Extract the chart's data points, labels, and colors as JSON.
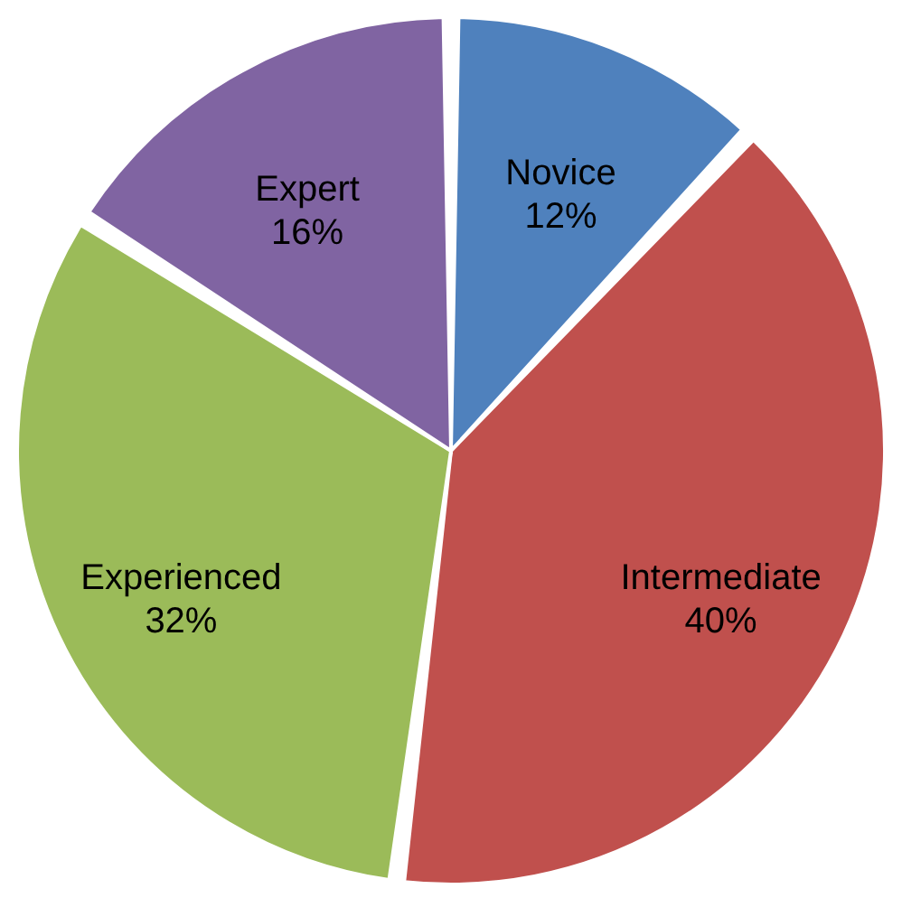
{
  "chart_data": {
    "type": "pie",
    "categories": [
      "Novice",
      "Intermediate",
      "Experienced",
      "Expert"
    ],
    "values": [
      12,
      40,
      32,
      16
    ],
    "value_labels": [
      "12%",
      "40%",
      "32%",
      "16%"
    ],
    "colors": [
      "#4f81bd",
      "#c0504d",
      "#9bbb59",
      "#8064a2"
    ],
    "legend": false
  }
}
